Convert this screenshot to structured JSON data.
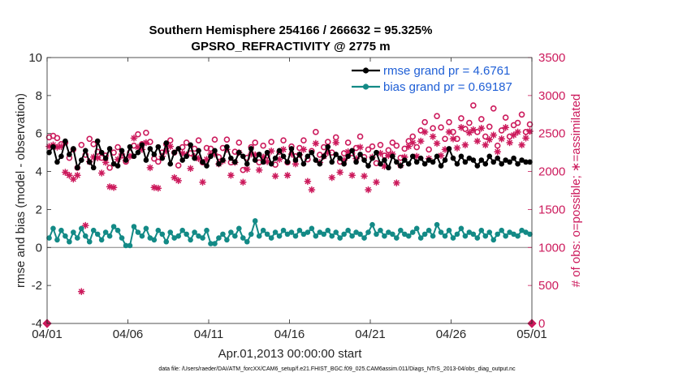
{
  "chart_data": {
    "type": "line",
    "title": "Southern Hemisphere 254166 / 266632 = 95.325%",
    "subtitle": "GPSRO_REFRACTIVITY @ 2775 m",
    "xlabel": "Apr.01,2013 00:00:00 start",
    "ylabel": "rmse and bias (model - observation)",
    "ylabel_right": "# of obs: o=possible; ∗=assimilated",
    "xlim": [
      0,
      30
    ],
    "ylim": [
      -4,
      10
    ],
    "ylim_right": [
      0,
      3500
    ],
    "x_tick_values": [
      0,
      5,
      10,
      15,
      20,
      25,
      30
    ],
    "x_tick_labels": [
      "04/01",
      "04/06",
      "04/11",
      "04/16",
      "04/21",
      "04/26",
      "05/01"
    ],
    "y_ticks": [
      -4,
      -2,
      0,
      2,
      4,
      6,
      8,
      10
    ],
    "y_ticks_right": [
      0,
      500,
      1000,
      1500,
      2000,
      2500,
      3000,
      3500
    ],
    "legend_position": "top-right",
    "zero_line": 0,
    "colors": {
      "rmse": "#000000",
      "bias": "#138a86",
      "obs": "#cc1a5c",
      "zero": "#808080"
    },
    "x": [
      0.125,
      0.375,
      0.625,
      0.875,
      1.125,
      1.375,
      1.625,
      1.875,
      2.125,
      2.375,
      2.625,
      2.875,
      3.125,
      3.375,
      3.625,
      3.875,
      4.125,
      4.375,
      4.625,
      4.875,
      5.125,
      5.375,
      5.625,
      5.875,
      6.125,
      6.375,
      6.625,
      6.875,
      7.125,
      7.375,
      7.625,
      7.875,
      8.125,
      8.375,
      8.625,
      8.875,
      9.125,
      9.375,
      9.625,
      9.875,
      10.125,
      10.375,
      10.625,
      10.875,
      11.125,
      11.375,
      11.625,
      11.875,
      12.125,
      12.375,
      12.625,
      12.875,
      13.125,
      13.375,
      13.625,
      13.875,
      14.125,
      14.375,
      14.625,
      14.875,
      15.125,
      15.375,
      15.625,
      15.875,
      16.125,
      16.375,
      16.625,
      16.875,
      17.125,
      17.375,
      17.625,
      17.875,
      18.125,
      18.375,
      18.625,
      18.875,
      19.125,
      19.375,
      19.625,
      19.875,
      20.125,
      20.375,
      20.625,
      20.875,
      21.125,
      21.375,
      21.625,
      21.875,
      22.125,
      22.375,
      22.625,
      22.875,
      23.125,
      23.375,
      23.625,
      23.875,
      24.125,
      24.375,
      24.625,
      24.875,
      25.125,
      25.375,
      25.625,
      25.875,
      26.125,
      26.375,
      26.625,
      26.875,
      27.125,
      27.375,
      27.625,
      27.875,
      28.125,
      28.375,
      28.625,
      28.875,
      29.125,
      29.375,
      29.625,
      29.875
    ],
    "series": [
      {
        "name": "rmse grand pr = 4.6761",
        "axis": "left",
        "values": [
          5.0,
          5.3,
          4.5,
          4.8,
          5.6,
          4.9,
          5.2,
          4.2,
          4.6,
          5.1,
          4.5,
          4.2,
          5.6,
          5.0,
          4.7,
          5.2,
          4.4,
          4.3,
          5.1,
          4.6,
          5.3,
          4.8,
          5.0,
          5.4,
          4.6,
          5.2,
          4.9,
          5.3,
          4.7,
          5.5,
          4.4,
          5.0,
          5.2,
          4.6,
          4.8,
          5.4,
          4.7,
          5.1,
          4.5,
          4.3,
          4.8,
          5.1,
          4.4,
          4.6,
          5.3,
          4.7,
          4.5,
          5.0,
          4.8,
          4.4,
          5.2,
          4.6,
          4.9,
          4.5,
          5.0,
          4.4,
          4.7,
          5.1,
          4.8,
          4.5,
          5.2,
          4.6,
          4.9,
          4.4,
          4.8,
          5.0,
          4.6,
          4.4,
          4.8,
          5.3,
          4.5,
          4.9,
          4.7,
          4.4,
          4.8,
          5.1,
          4.5,
          4.9,
          4.6,
          4.3,
          4.7,
          5.0,
          4.4,
          4.6,
          4.2,
          4.8,
          4.5,
          4.3,
          4.6,
          4.4,
          4.8,
          4.5,
          4.7,
          4.4,
          4.6,
          4.5,
          4.8,
          4.3,
          4.6,
          5.2,
          4.7,
          4.4,
          4.8,
          4.5,
          4.7,
          4.6,
          4.3,
          4.6,
          4.4,
          4.8,
          4.5,
          4.7,
          4.4,
          4.6,
          4.5,
          4.7,
          4.4,
          4.6,
          4.5,
          4.5
        ]
      },
      {
        "name": "bias grand pr = 0.69187",
        "axis": "left",
        "values": [
          0.5,
          1.0,
          0.4,
          0.9,
          0.6,
          0.3,
          0.8,
          0.5,
          1.0,
          0.6,
          0.3,
          0.9,
          0.7,
          0.4,
          0.8,
          0.6,
          1.1,
          0.9,
          0.5,
          0.1,
          0.1,
          1.1,
          0.8,
          0.6,
          1.0,
          0.5,
          0.4,
          0.9,
          0.7,
          0.3,
          0.8,
          0.5,
          0.6,
          0.9,
          0.7,
          0.4,
          0.8,
          0.6,
          0.5,
          0.9,
          0.2,
          0.2,
          0.5,
          0.7,
          0.4,
          0.8,
          0.6,
          1.0,
          0.5,
          0.3,
          0.7,
          1.4,
          0.6,
          0.9,
          0.7,
          0.5,
          0.8,
          0.6,
          0.9,
          0.7,
          0.8,
          0.6,
          0.9,
          0.7,
          0.8,
          1.0,
          0.6,
          0.8,
          0.7,
          0.9,
          0.6,
          0.8,
          0.5,
          0.7,
          0.9,
          0.6,
          0.8,
          0.7,
          0.5,
          0.8,
          1.2,
          0.7,
          0.9,
          0.6,
          0.8,
          0.7,
          0.5,
          0.9,
          0.7,
          0.6,
          0.8,
          1.0,
          0.5,
          0.7,
          0.9,
          0.6,
          1.2,
          0.8,
          0.6,
          0.9,
          0.5,
          0.7,
          1.0,
          0.6,
          0.8,
          0.7,
          0.5,
          0.9,
          0.6,
          0.8,
          0.4,
          0.7,
          0.9,
          0.6,
          0.8,
          0.7,
          0.6,
          0.9,
          0.8,
          0.7
        ]
      },
      {
        "name": "possible",
        "axis": "right",
        "values": [
          2450,
          2470,
          2440,
          2360,
          2380,
          2180,
          2290,
          2050,
          2350,
          2220,
          2430,
          2360,
          2260,
          2180,
          2210,
          2050,
          2250,
          2320,
          2210,
          2130,
          2250,
          2340,
          2490,
          2360,
          2510,
          2390,
          2170,
          2130,
          2250,
          2360,
          2410,
          2250,
          2080,
          2320,
          2380,
          2240,
          2300,
          2410,
          2120,
          2310,
          2300,
          2420,
          2190,
          2310,
          2420,
          2120,
          2260,
          2380,
          2020,
          2180,
          2320,
          2380,
          2120,
          2340,
          2210,
          2390,
          2090,
          2260,
          2410,
          2120,
          2330,
          2200,
          2310,
          2410,
          2160,
          2270,
          2520,
          2220,
          2320,
          2390,
          2250,
          2450,
          2130,
          2240,
          2380,
          2240,
          2310,
          2460,
          2190,
          2290,
          2330,
          2110,
          2350,
          2210,
          2280,
          2380,
          2340,
          2180,
          2300,
          2400,
          2460,
          2320,
          2540,
          2650,
          2290,
          2570,
          2730,
          2580,
          2430,
          2650,
          2520,
          2430,
          2700,
          2560,
          2640,
          2870,
          2520,
          2690,
          2460,
          2590,
          2830,
          2340,
          2540,
          2710,
          2460,
          2610,
          2640,
          2750,
          2520,
          2620
        ]
      },
      {
        "name": "assimilated",
        "axis": "right",
        "values": [
          2330,
          2350,
          2320,
          2330,
          1990,
          1950,
          1900,
          1950,
          420,
          1290,
          2130,
          2190,
          2180,
          1980,
          2120,
          1800,
          1790,
          2160,
          2230,
          2150,
          2200,
          2440,
          2320,
          2290,
          2380,
          2050,
          1790,
          1780,
          2200,
          2270,
          2330,
          1920,
          1880,
          2240,
          2220,
          2040,
          2200,
          2170,
          1860,
          2160,
          2230,
          2230,
          2100,
          2140,
          2290,
          1950,
          2120,
          2250,
          1860,
          2030,
          2230,
          2220,
          2020,
          2190,
          2130,
          2270,
          1940,
          2160,
          2290,
          1950,
          2230,
          2100,
          2220,
          2290,
          1870,
          1760,
          2370,
          2120,
          2200,
          2250,
          1920,
          2380,
          1990,
          2150,
          2260,
          1950,
          2170,
          2320,
          1940,
          1760,
          2190,
          1860,
          2240,
          2070,
          2210,
          2230,
          1850,
          2080,
          2190,
          2330,
          2380,
          2200,
          2400,
          2520,
          2170,
          2460,
          2370,
          2210,
          2290,
          2520,
          2430,
          2310,
          2580,
          2350,
          2510,
          2550,
          2400,
          2570,
          2350,
          2420,
          2480,
          2260,
          2430,
          2580,
          2380,
          2480,
          2520,
          2350,
          2440,
          2530
        ]
      }
    ],
    "obs_endpoints": {
      "x": [
        0,
        30
      ],
      "values": [
        0,
        0
      ]
    }
  },
  "footer": "data file: /Users/raeder/DAI/ATM_forcXX/CAM6_setup/f.e21.FHIST_BGC.f09_025.CAM6assim.011/Diags_NTrS_2013-04/obs_diag_output.nc"
}
